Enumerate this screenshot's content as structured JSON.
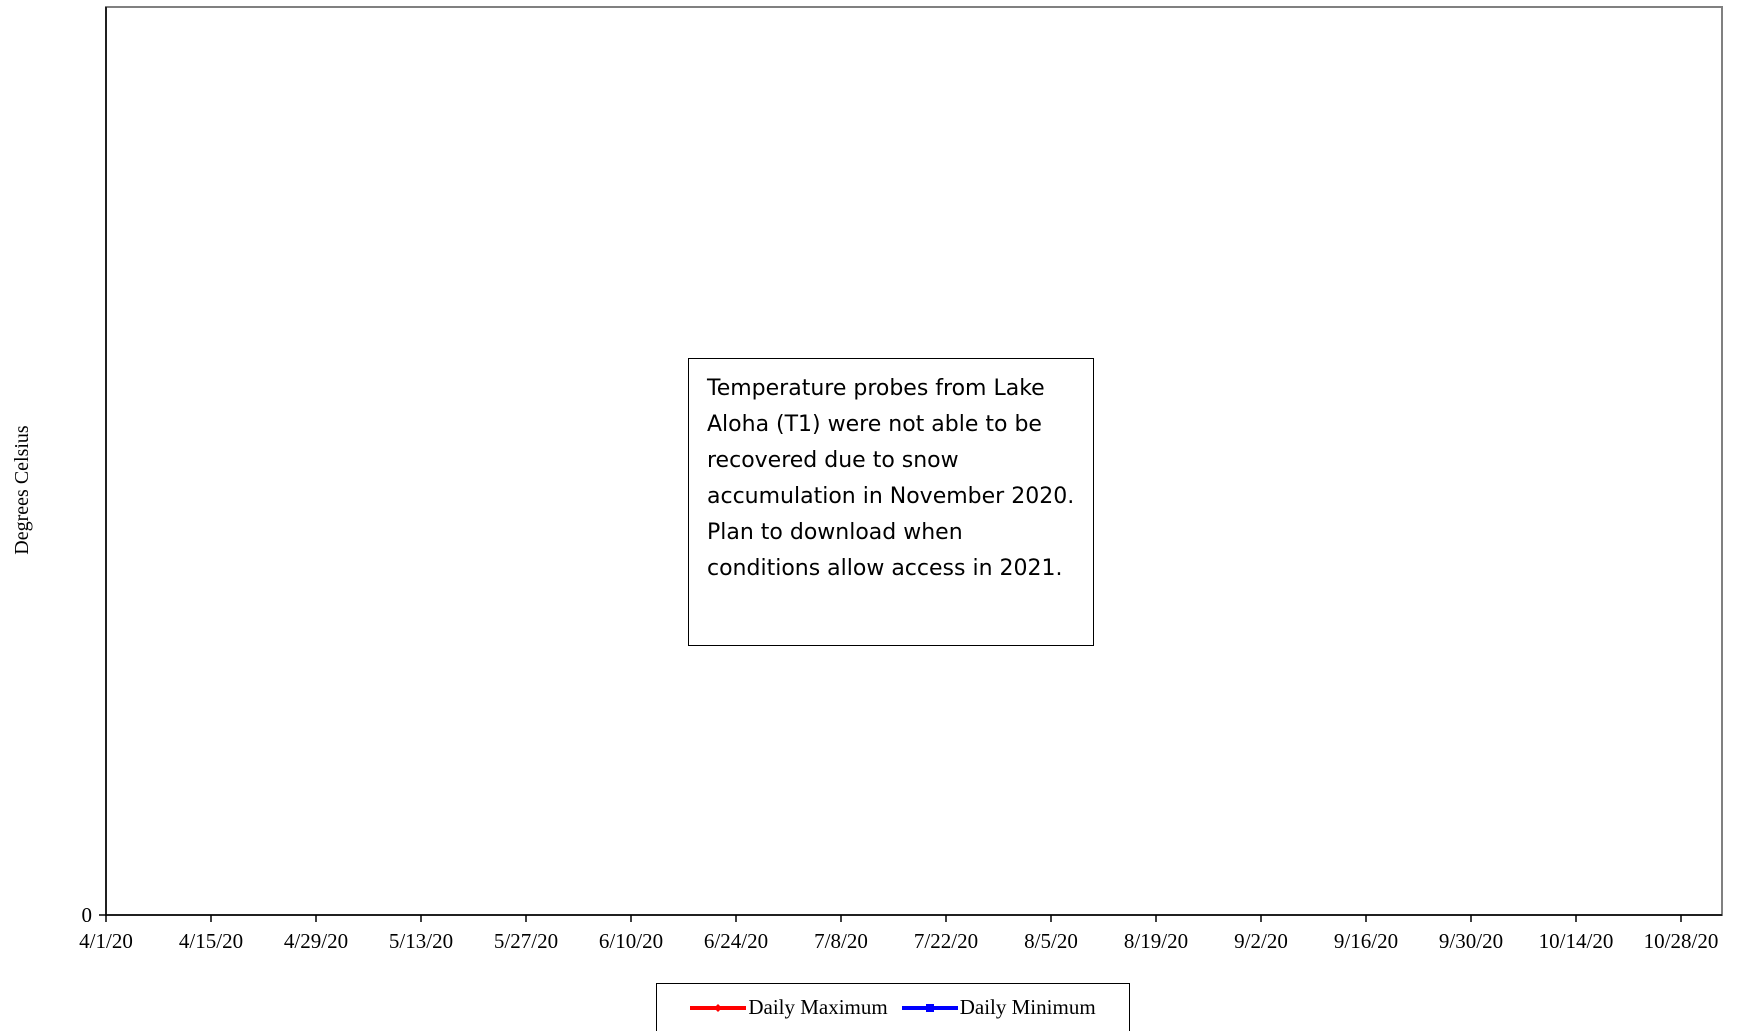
{
  "chart_data": {
    "type": "line",
    "title": "",
    "xlabel": "",
    "ylabel": "Degrees Celsius",
    "y_ticks": [
      "0"
    ],
    "x_ticks": [
      "4/1/20",
      "4/15/20",
      "4/29/20",
      "5/13/20",
      "5/27/20",
      "6/10/20",
      "6/24/20",
      "7/8/20",
      "7/22/20",
      "8/5/20",
      "8/19/20",
      "9/2/20",
      "9/16/20",
      "9/30/20",
      "10/14/20",
      "10/28/20"
    ],
    "xlim": [
      "4/1/20",
      "10/28/20"
    ],
    "ylim": [
      0,
      null
    ],
    "grid": false,
    "legend_position": "bottom",
    "series": [
      {
        "name": "Daily Maximum",
        "color": "#ff0000",
        "marker": "diamond",
        "values": []
      },
      {
        "name": "Daily Minimum",
        "color": "#0000ff",
        "marker": "square",
        "values": []
      }
    ],
    "annotation": "Temperature probes from Lake Aloha (T1) were not able to be recovered due to snow accumulation in November 2020. Plan to download when conditions allow access in 2021."
  }
}
